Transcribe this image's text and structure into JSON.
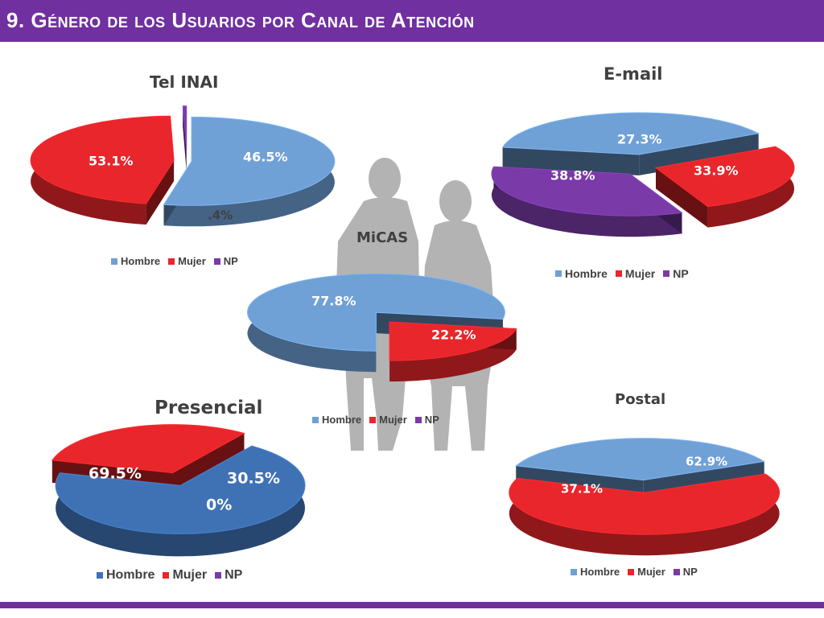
{
  "slide_title": "9. Género de los Usuarios por Canal de Atención",
  "colors": {
    "accent": "#7030a0",
    "hombre": "#6fa0d6",
    "hombre_dark": "#3a6aa8",
    "presencial_hombre": "#3f72b5",
    "mujer": "#e8262b",
    "mujer_dark": "#8e1115",
    "np": "#7a3aa8",
    "np_dark": "#4a1d6e",
    "silhouette": "#9a9a9a"
  },
  "legend_labels": [
    "Hombre",
    "Mujer",
    "NP"
  ],
  "chart_data": [
    {
      "type": "pie",
      "title": "Tel INAI",
      "categories": [
        "Hombre",
        "Mujer",
        "NP"
      ],
      "values": [
        53.1,
        46.5,
        0.4
      ],
      "data_labels": [
        "53.1%",
        "46.5%",
        ".4%"
      ],
      "legend": "bottom"
    },
    {
      "type": "pie",
      "title": "E-mail",
      "categories": [
        "Hombre",
        "Mujer",
        "NP"
      ],
      "values": [
        38.8,
        27.3,
        33.9
      ],
      "data_labels": [
        "38.8%",
        "27.3%",
        "33.9%"
      ],
      "legend": "bottom"
    },
    {
      "type": "pie",
      "title": "MiCAS",
      "categories": [
        "Hombre",
        "Mujer",
        "NP"
      ],
      "values": [
        77.8,
        22.2,
        0
      ],
      "data_labels": [
        "77.8%",
        "22.2%",
        ""
      ],
      "legend": "bottom"
    },
    {
      "type": "pie",
      "title": "Presencial",
      "categories": [
        "Hombre",
        "Mujer",
        "NP"
      ],
      "values": [
        69.5,
        30.5,
        0
      ],
      "data_labels": [
        "69.5%",
        "30.5%",
        "0%"
      ],
      "legend": "bottom"
    },
    {
      "type": "pie",
      "title": "Postal",
      "categories": [
        "Hombre",
        "Mujer",
        "NP"
      ],
      "values": [
        37.1,
        62.9,
        0
      ],
      "data_labels": [
        "37.1%",
        "62.9%",
        ""
      ],
      "legend": "bottom"
    }
  ]
}
